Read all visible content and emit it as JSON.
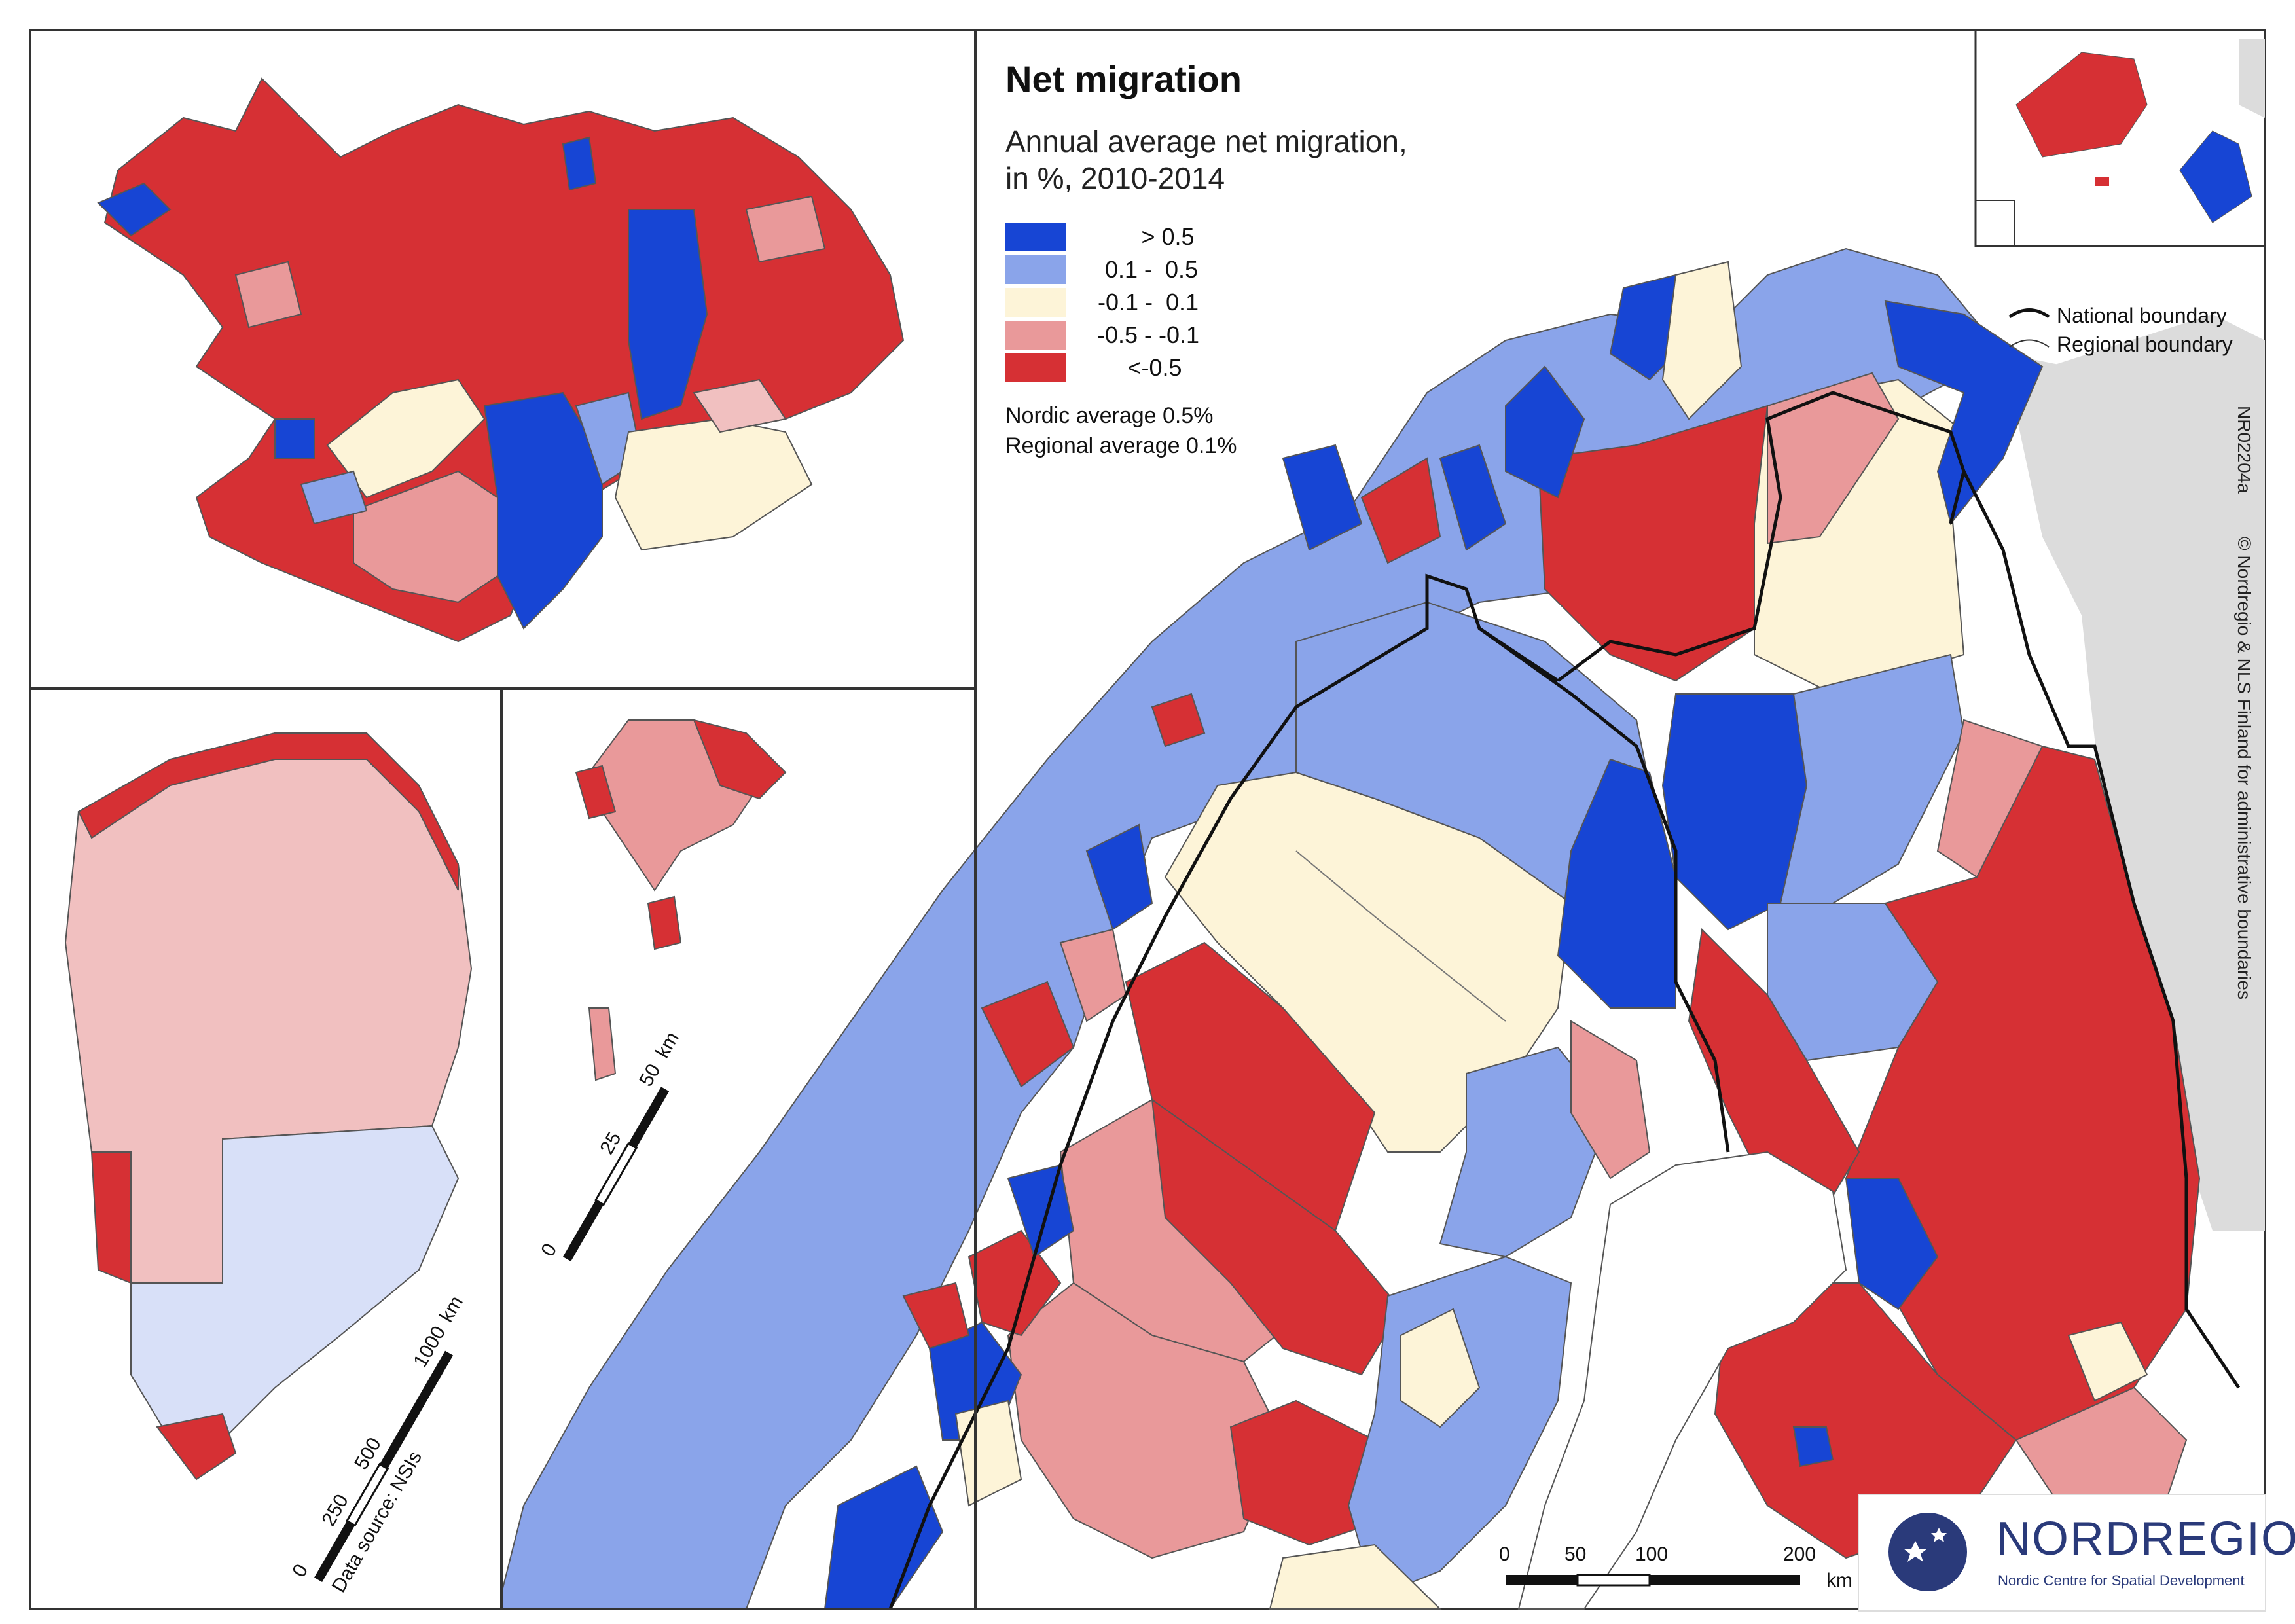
{
  "title": "Net migration",
  "subtitle_lines": [
    "Annual average net migration,",
    "in %, 2010-2014"
  ],
  "legend": [
    {
      "label": "      > 0.5",
      "color": "#1745d4"
    },
    {
      "label": " 0.1 -  0.5",
      "color": "#8aa4ea"
    },
    {
      "label": "-0.1 -  0.1",
      "color": "#fdf4d8"
    },
    {
      "label": "-0.5 - -0.1",
      "color": "#e9999a"
    },
    {
      "label": "  <-0.5",
      "color": "#d63034"
    }
  ],
  "averages": [
    "Nordic average 0.5%",
    "Regional average 0.1%"
  ],
  "boundary_legend": {
    "national": "National boundary",
    "regional": "Regional boundary"
  },
  "map_id": "NR02204a",
  "copyright": "© Nordregio & NLS Finland for administrative boundaries",
  "data_source": "Data source: NSIs",
  "scalebar_main": {
    "ticks": [
      "0",
      "50",
      "100",
      "200"
    ],
    "unit": "km"
  },
  "scalebar_svalbard": {
    "ticks": [
      "0",
      "25",
      "50"
    ],
    "unit": "km"
  },
  "scalebar_greenland": {
    "ticks": [
      "0",
      "250",
      "500",
      "1000"
    ],
    "unit": "km"
  },
  "logo": {
    "name": "NORDREGIO",
    "subtitle": "Nordic Centre for Spatial Development"
  },
  "colors": {
    "frame": "#333333",
    "sea": "#ffffff",
    "neighbour_land": "#dcdcdc",
    "national_boundary": "#111111",
    "regional_boundary": "#666666"
  }
}
